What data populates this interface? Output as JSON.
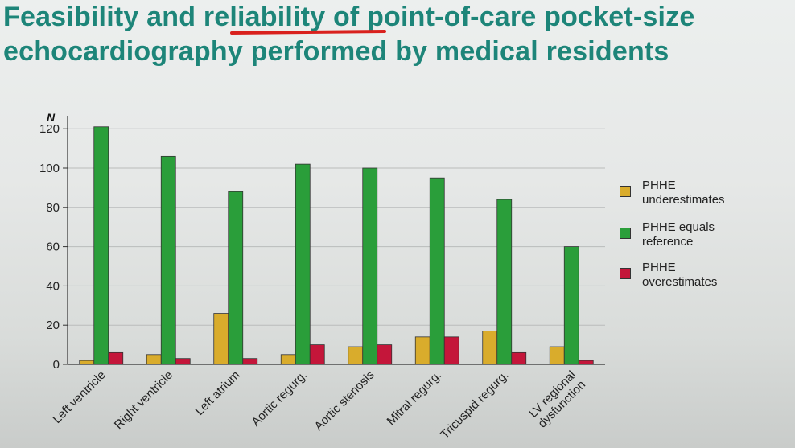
{
  "slide": {
    "title": "Feasibility and reliability of point-of-care pocket-size echocardiography performed by medical residents"
  },
  "chart_data": {
    "type": "bar",
    "ylabel": "N",
    "ylim": [
      0,
      125
    ],
    "yticks": [
      0,
      20,
      40,
      60,
      80,
      100,
      120
    ],
    "grid": true,
    "legend_position": "right",
    "categories": [
      "Left ventricle",
      "Right ventricle",
      "Left atrium",
      "Aortic regurg.",
      "Aortic stenosis",
      "Mitral regurg.",
      "Tricuspid regurg.",
      "LV regional dysfunction"
    ],
    "series": [
      {
        "name": "PHHE underestimates",
        "color": "#d9ac2c",
        "values": [
          2,
          5,
          26,
          5,
          9,
          14,
          17,
          9
        ]
      },
      {
        "name": "PHHE equals reference",
        "color": "#2a9e3a",
        "values": [
          121,
          106,
          88,
          102,
          100,
          95,
          84,
          60
        ]
      },
      {
        "name": "PHHE overestimates",
        "color": "#c4163a",
        "values": [
          6,
          3,
          3,
          10,
          10,
          14,
          6,
          2
        ]
      }
    ]
  }
}
